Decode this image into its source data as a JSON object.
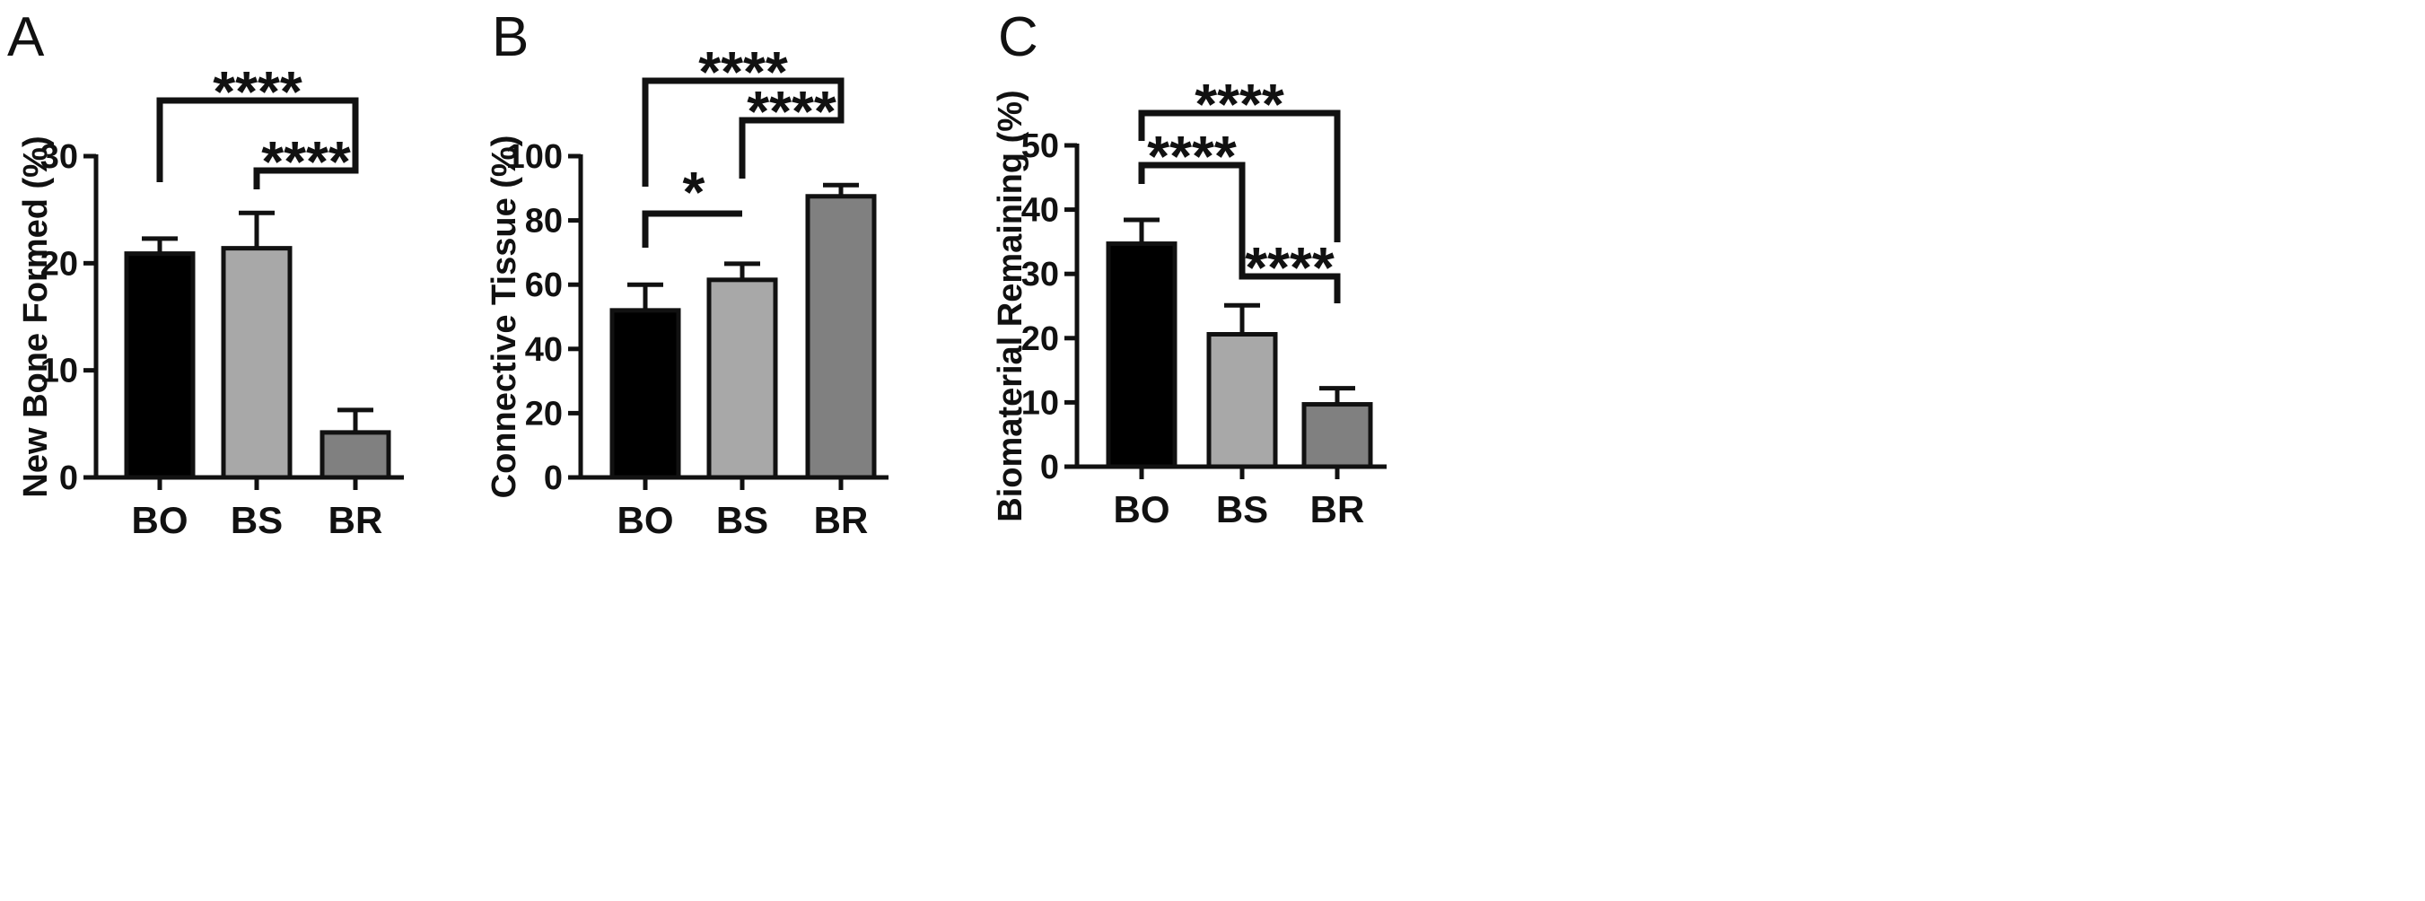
{
  "chart_data": [
    {
      "type": "bar",
      "panel": "A",
      "ylabel": "New Bone Formed (%)",
      "ylim": [
        0,
        30
      ],
      "yticks": [
        0,
        10,
        20,
        30
      ],
      "categories": [
        "BO",
        "BS",
        "BR"
      ],
      "values": [
        20.9,
        21.4,
        4.2
      ],
      "errors": [
        1.4,
        3.3,
        2.1
      ],
      "colors": [
        "#000000",
        "#a8a8a8",
        "#808080"
      ],
      "comparisons": [
        {
          "from": 0,
          "to": 2,
          "label": "****"
        },
        {
          "from": 1,
          "to": 2,
          "label": "****"
        }
      ]
    },
    {
      "type": "bar",
      "panel": "B",
      "ylabel": "Connective Tissue (%)",
      "ylim": [
        0,
        100
      ],
      "yticks": [
        0,
        20,
        40,
        60,
        80,
        100
      ],
      "categories": [
        "BO",
        "BS",
        "BR"
      ],
      "values": [
        52,
        61.5,
        87.5
      ],
      "errors": [
        8,
        5,
        3.5
      ],
      "colors": [
        "#000000",
        "#a8a8a8",
        "#808080"
      ],
      "comparisons": [
        {
          "from": 0,
          "to": 1,
          "label": "*"
        },
        {
          "from": 1,
          "to": 2,
          "label": "****"
        },
        {
          "from": 0,
          "to": 2,
          "label": "****"
        }
      ]
    },
    {
      "type": "bar",
      "panel": "C",
      "ylabel": "Biomaterial Remaining (%)",
      "ylim": [
        0,
        50
      ],
      "yticks": [
        0,
        10,
        20,
        30,
        40,
        50
      ],
      "categories": [
        "BO",
        "BS",
        "BR"
      ],
      "values": [
        34.7,
        20.6,
        9.7
      ],
      "errors": [
        3.7,
        4.5,
        2.5
      ],
      "colors": [
        "#000000",
        "#a8a8a8",
        "#808080"
      ],
      "comparisons": [
        {
          "from": 0,
          "to": 1,
          "label": "****"
        },
        {
          "from": 1,
          "to": 2,
          "label": "****"
        },
        {
          "from": 0,
          "to": 2,
          "label": "****"
        }
      ]
    }
  ]
}
